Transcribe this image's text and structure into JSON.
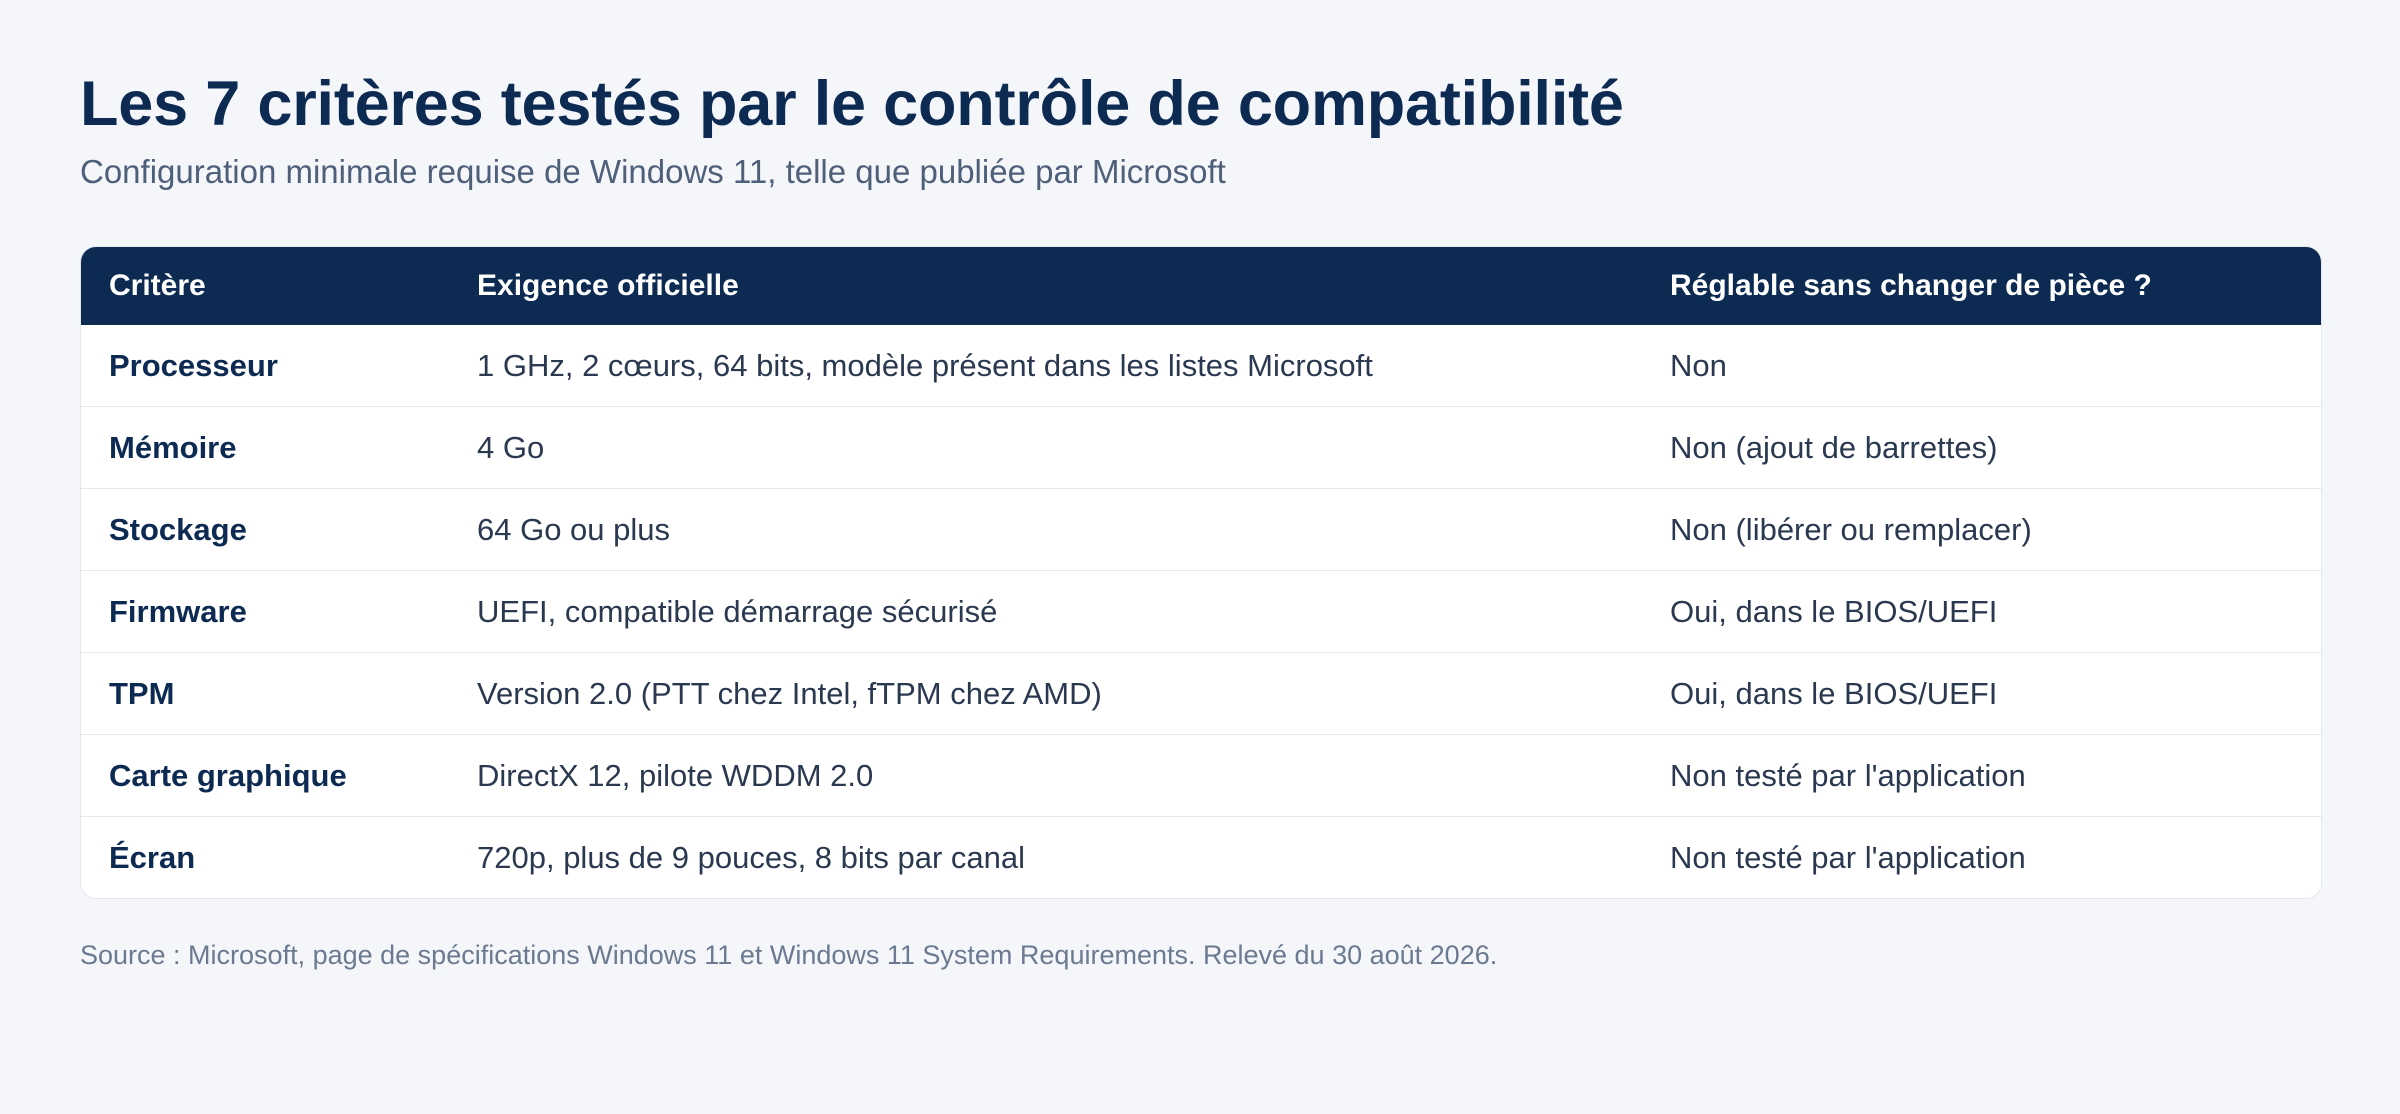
{
  "title": "Les 7 critères testés par le contrôle de compatibilité",
  "subtitle": "Configuration minimale requise de Windows 11, telle que publiée par Microsoft",
  "table": {
    "headers": [
      "Critère",
      "Exigence officielle",
      "Réglable sans changer de pièce ?"
    ],
    "rows": [
      [
        "Processeur",
        "1 GHz, 2 cœurs, 64 bits, modèle présent dans les listes Microsoft",
        "Non"
      ],
      [
        "Mémoire",
        "4 Go",
        "Non (ajout de barrettes)"
      ],
      [
        "Stockage",
        "64 Go ou plus",
        "Non (libérer ou remplacer)"
      ],
      [
        "Firmware",
        "UEFI, compatible démarrage sécurisé",
        "Oui, dans le BIOS/UEFI"
      ],
      [
        "TPM",
        "Version 2.0 (PTT chez Intel, fTPM chez AMD)",
        "Oui, dans le BIOS/UEFI"
      ],
      [
        "Carte graphique",
        "DirectX 12, pilote WDDM 2.0",
        "Non testé par l'application"
      ],
      [
        "Écran",
        "720p, plus de 9 pouces, 8 bits par canal",
        "Non testé par l'application"
      ]
    ]
  },
  "source": "Source : Microsoft, page de spécifications Windows 11 et Windows 11 System Requirements. Relevé du 30 août 2026.",
  "colors": {
    "header_bg": "#0c2a52",
    "page_bg": "#f4f6fa",
    "title": "#0c2a52"
  }
}
